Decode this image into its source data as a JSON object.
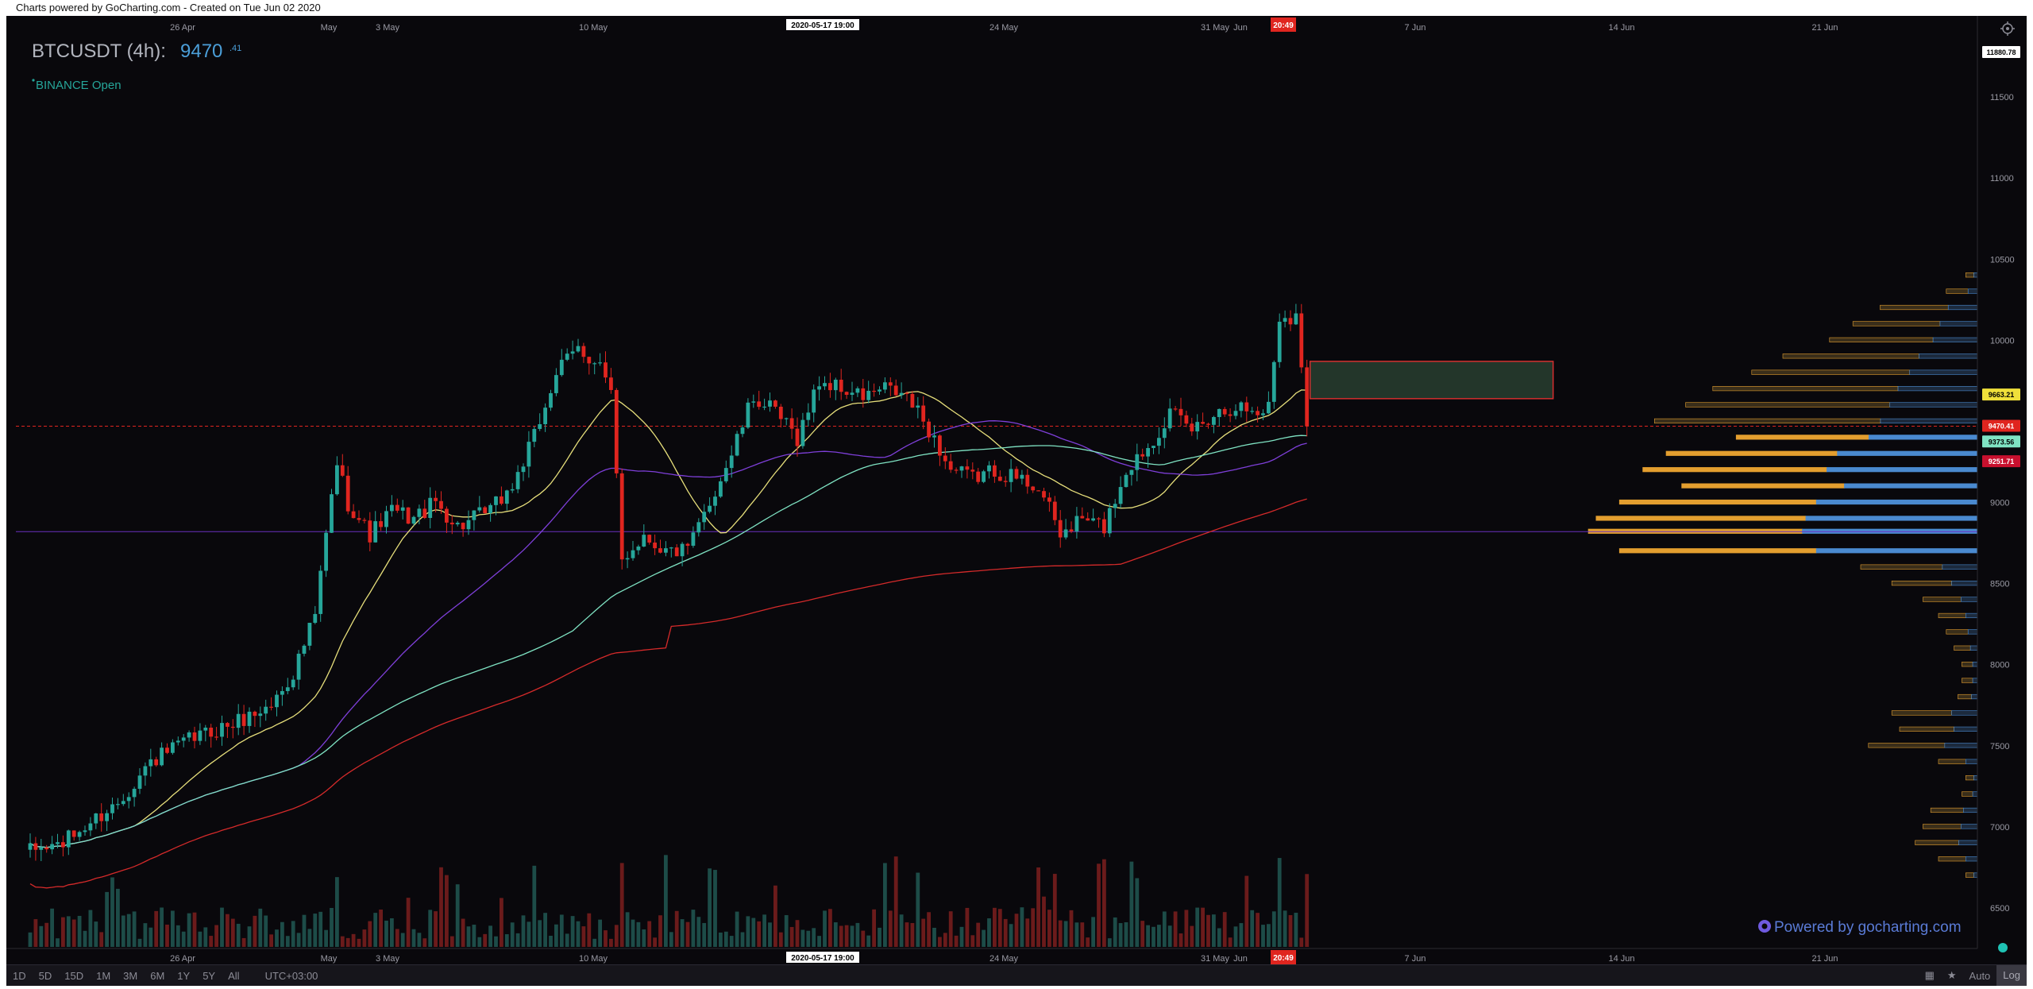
{
  "caption": "Charts powered by GoCharting.com - Created on Tue Jun 02 2020",
  "chart": {
    "symbol": "BTCUSDT (4h):",
    "last_price": "9470",
    "last_price_decimals": ".41",
    "exchange_status": "BINANCE Open",
    "watermark": "Powered by gocharting.com",
    "crosshair_date": "2020-05-17 19:00",
    "countdown": "20:49"
  },
  "colors": {
    "background": "#09080c",
    "up": "#26a69a",
    "down": "#e0251f",
    "ma_fast": "#e7df7b",
    "ma_mid": "#7e3fd9",
    "ma_slow": "#7fe3c3",
    "ma_long": "#d42a2a",
    "profile_orange": "#e39e2f",
    "profile_blue": "#4a8ad0",
    "box": "#23362a",
    "box_border": "#d32f2f"
  },
  "chart_data": {
    "type": "candlestick",
    "title": "BTCUSDT (4h)",
    "x_tick_labels": [
      "26 Apr",
      "May",
      "3 May",
      "10 May",
      "24 May",
      "31 May",
      "Jun",
      "7 Jun",
      "14 Jun",
      "21 Jun"
    ],
    "y_tick_labels": [
      "11500",
      "11000",
      "10500",
      "10000",
      "9000",
      "8500",
      "8000",
      "7500",
      "7000",
      "6500"
    ],
    "ylim": [
      6250,
      12000
    ],
    "price_tags": [
      {
        "label": "11880.78",
        "kind": "max"
      },
      {
        "label": "9663.21",
        "kind": "yellow"
      },
      {
        "label": "9470.41",
        "kind": "last"
      },
      {
        "label": "9373.56",
        "kind": "green"
      },
      {
        "label": "9251.71",
        "kind": "red"
      }
    ],
    "anchors": [
      [
        0,
        6850
      ],
      [
        6,
        6900
      ],
      [
        12,
        7050
      ],
      [
        16,
        7150
      ],
      [
        22,
        7400
      ],
      [
        30,
        7550
      ],
      [
        38,
        7650
      ],
      [
        44,
        7750
      ],
      [
        48,
        7950
      ],
      [
        52,
        8300
      ],
      [
        54,
        8800
      ],
      [
        56,
        9250
      ],
      [
        58,
        9000
      ],
      [
        62,
        8800
      ],
      [
        66,
        8950
      ],
      [
        70,
        8900
      ],
      [
        74,
        9000
      ],
      [
        78,
        8850
      ],
      [
        84,
        8950
      ],
      [
        88,
        9100
      ],
      [
        92,
        9400
      ],
      [
        96,
        9800
      ],
      [
        100,
        9950
      ],
      [
        104,
        9850
      ],
      [
        106,
        9650
      ],
      [
        108,
        8650
      ],
      [
        112,
        8800
      ],
      [
        116,
        8700
      ],
      [
        120,
        8700
      ],
      [
        124,
        9000
      ],
      [
        128,
        9300
      ],
      [
        132,
        9650
      ],
      [
        136,
        9550
      ],
      [
        140,
        9400
      ],
      [
        144,
        9750
      ],
      [
        148,
        9700
      ],
      [
        152,
        9650
      ],
      [
        156,
        9700
      ],
      [
        160,
        9650
      ],
      [
        164,
        9450
      ],
      [
        168,
        9200
      ],
      [
        172,
        9150
      ],
      [
        176,
        9200
      ],
      [
        180,
        9150
      ],
      [
        184,
        9100
      ],
      [
        188,
        8800
      ],
      [
        192,
        8900
      ],
      [
        196,
        8850
      ],
      [
        200,
        9200
      ],
      [
        204,
        9350
      ],
      [
        208,
        9550
      ],
      [
        212,
        9450
      ],
      [
        216,
        9550
      ],
      [
        220,
        9600
      ],
      [
        224,
        9550
      ],
      [
        226,
        9600
      ],
      [
        228,
        10150
      ],
      [
        231,
        10150
      ],
      [
        233,
        9470
      ]
    ],
    "moving_averages": [
      {
        "name": "",
        "color": "#e7df7b",
        "length": 20
      },
      {
        "name": "",
        "color": "#7e3fd9",
        "length": 50
      },
      {
        "name": "",
        "color": "#7fe3c3",
        "length": 100
      },
      {
        "name": "",
        "color": "#d42a2a",
        "length": 200
      }
    ],
    "horizontal_lines": [
      9470.41,
      8820
    ],
    "box": {
      "price_high": 9870,
      "price_low": 9640
    },
    "volume_profile": [
      {
        "price": 10400,
        "volume": 3
      },
      {
        "price": 10300,
        "volume": 8
      },
      {
        "price": 10200,
        "volume": 25
      },
      {
        "price": 10100,
        "volume": 32
      },
      {
        "price": 10000,
        "volume": 38
      },
      {
        "price": 9900,
        "volume": 50
      },
      {
        "price": 9800,
        "volume": 58
      },
      {
        "price": 9700,
        "volume": 68
      },
      {
        "price": 9600,
        "volume": 75
      },
      {
        "price": 9500,
        "volume": 83
      },
      {
        "price": 9400,
        "volume": 62
      },
      {
        "price": 9300,
        "volume": 80
      },
      {
        "price": 9200,
        "volume": 86
      },
      {
        "price": 9100,
        "volume": 76
      },
      {
        "price": 9000,
        "volume": 92
      },
      {
        "price": 8900,
        "volume": 98
      },
      {
        "price": 8820,
        "volume": 100
      },
      {
        "price": 8700,
        "volume": 92
      },
      {
        "price": 8600,
        "volume": 30
      },
      {
        "price": 8500,
        "volume": 22
      },
      {
        "price": 8400,
        "volume": 14
      },
      {
        "price": 8300,
        "volume": 10
      },
      {
        "price": 8200,
        "volume": 8
      },
      {
        "price": 8100,
        "volume": 6
      },
      {
        "price": 8000,
        "volume": 4
      },
      {
        "price": 7900,
        "volume": 4
      },
      {
        "price": 7800,
        "volume": 5
      },
      {
        "price": 7700,
        "volume": 22
      },
      {
        "price": 7600,
        "volume": 20
      },
      {
        "price": 7500,
        "volume": 28
      },
      {
        "price": 7400,
        "volume": 10
      },
      {
        "price": 7300,
        "volume": 3
      },
      {
        "price": 7200,
        "volume": 4
      },
      {
        "price": 7100,
        "volume": 12
      },
      {
        "price": 7000,
        "volume": 14
      },
      {
        "price": 6900,
        "volume": 16
      },
      {
        "price": 6800,
        "volume": 10
      },
      {
        "price": 6700,
        "volume": 3
      }
    ]
  },
  "timeframes": [
    "1D",
    "5D",
    "15D",
    "1M",
    "3M",
    "6M",
    "1Y",
    "5Y",
    "All"
  ],
  "timezone": "UTC+03:00",
  "bottom_right": {
    "auto": "Auto",
    "log": "Log"
  }
}
